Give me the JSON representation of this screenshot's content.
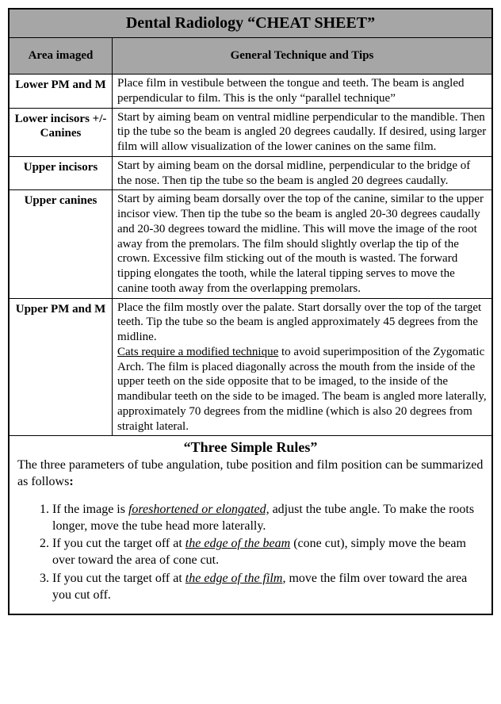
{
  "title": "Dental Radiology “CHEAT SHEET”",
  "headers": {
    "area": "Area imaged",
    "tech": "General Technique and Tips"
  },
  "rows": {
    "r0": {
      "area": "Lower PM and M",
      "tech": "Place film in vestibule between the tongue and teeth.  The beam is angled perpendicular to film.  This is the only “parallel technique”"
    },
    "r1": {
      "area": "Lower incisors +/- Canines",
      "tech": "Start by aiming beam on ventral midline perpendicular to the mandible.  Then tip the tube so the beam is angled 20 degrees caudally.  If desired, using larger film will allow visualization of the lower canines on the same film."
    },
    "r2": {
      "area": "Upper incisors",
      "tech": "Start by aiming beam on the dorsal midline, perpendicular to the bridge of the nose. Then tip the tube so the beam is angled 20 degrees caudally."
    },
    "r3": {
      "area": "Upper canines",
      "tech": "Start by aiming beam dorsally over the top of the canine, similar to the upper incisor view.  Then tip the tube so the beam is angled 20-30 degrees caudally and 20-30 degrees toward the midline.  This will move the image of the root away from the premolars.  The film should slightly overlap the tip of the crown. Excessive film sticking out of the mouth is wasted. The forward tipping elongates the tooth, while the lateral tipping serves to move the canine tooth away from the overlapping premolars."
    },
    "r4": {
      "area": "Upper PM and M",
      "tech_a": "Place the film mostly over the palate. Start dorsally over the top of the target teeth.  Tip the tube so the beam is angled approximately 45 degrees from the midline.",
      "tech_b_ul": "Cats require a modified technique",
      "tech_b_rest": " to avoid superimposition of the Zygomatic Arch. The film is placed diagonally across the mouth from the inside of the upper teeth on the side opposite that to be imaged, to the inside of the mandibular teeth on the side to be imaged.  The beam is angled more laterally, approximately 70 degrees from the midline (which is also 20 degrees from straight lateral."
    }
  },
  "rules": {
    "title": "“Three Simple Rules”",
    "intro_a": "The three parameters of tube angulation, tube position and film position can be summarized as follows",
    "intro_colon": ":",
    "li1_a": "If the image is ",
    "li1_em": "foreshortened or elongated,",
    "li1_b": " adjust the tube angle. To make the roots longer, move the tube head more laterally.",
    "li2_a": "If you cut the target off at ",
    "li2_em": "the edge of the beam",
    "li2_b": " (cone cut), simply move the beam over toward the area of cone cut.",
    "li3_a": "If you cut the target off at ",
    "li3_em": "the edge of the film",
    "li3_b": ", move the film over toward the area you cut off."
  },
  "style": {
    "header_bg": "#a6a6a6",
    "border_color": "#000000",
    "title_fontsize": 20,
    "header_fontsize": 15,
    "body_fontsize": 15,
    "rules_fontsize": 16,
    "font_family": "Times New Roman"
  }
}
